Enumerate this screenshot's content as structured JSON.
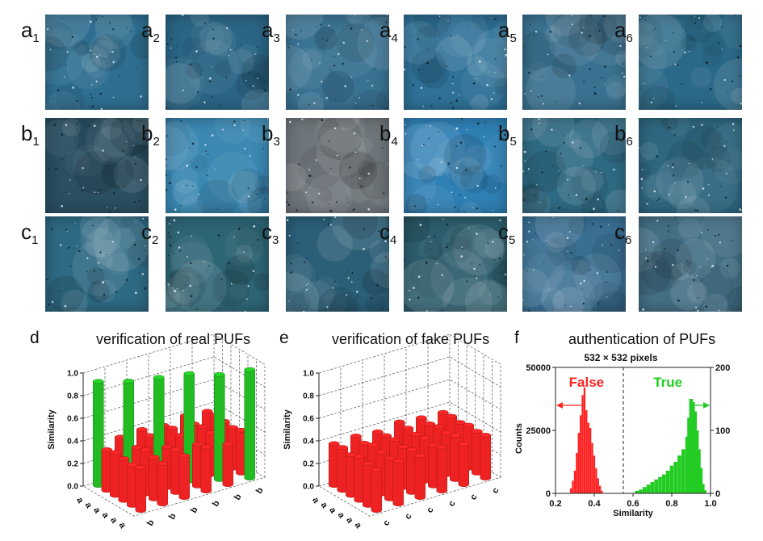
{
  "rows": [
    {
      "letter": "a",
      "subs": [
        "1",
        "2",
        "3",
        "4",
        "5",
        "6"
      ],
      "colors": [
        "#2f6e90",
        "#2b6585",
        "#3a7292",
        "#2f7197",
        "#3a7190",
        "#2b6988"
      ]
    },
    {
      "letter": "b",
      "subs": [
        "1",
        "2",
        "3",
        "4",
        "5",
        "6"
      ],
      "colors": [
        "#2a4f61",
        "#3b88b2",
        "#6f767b",
        "#2f80b5",
        "#2f6a84",
        "#2f6780"
      ]
    },
    {
      "letter": "c",
      "subs": [
        "1",
        "2",
        "3",
        "4",
        "5",
        "6"
      ],
      "colors": [
        "#2e6983",
        "#2e6575",
        "#2b5f78",
        "#2c5d6c",
        "#3a6f92",
        "#436f85"
      ]
    }
  ],
  "panels": {
    "d": {
      "letter": "d",
      "title": "verification of real PUFs"
    },
    "e": {
      "letter": "e",
      "title": "verification of fake PUFs"
    },
    "f": {
      "letter": "f",
      "title": "authentication of PUFs"
    }
  },
  "chart_data": [
    {
      "panel": "d",
      "type": "bar3d",
      "zlabel": "Similarity",
      "zlim": [
        0.0,
        1.0
      ],
      "zticks": [
        "0.0",
        "0.2",
        "0.4",
        "0.6",
        "0.8",
        "1.0"
      ],
      "rows": [
        "a1",
        "a2",
        "a3",
        "a4",
        "a5",
        "a6"
      ],
      "cols": [
        "b1",
        "b2",
        "b3",
        "b4",
        "b5",
        "b6"
      ],
      "row_axis_labels": [
        "a",
        "a",
        "a",
        "a",
        "a",
        "a"
      ],
      "col_axis_labels": [
        "b",
        "b",
        "b",
        "b",
        "b",
        "b"
      ],
      "matching_color": "#22bb22",
      "nonmatching_color": "#ee2222",
      "values": [
        [
          0.92,
          0.37,
          0.38,
          0.36,
          0.39,
          0.37
        ],
        [
          0.36,
          0.91,
          0.37,
          0.38,
          0.36,
          0.38
        ],
        [
          0.38,
          0.37,
          0.93,
          0.36,
          0.38,
          0.37
        ],
        [
          0.37,
          0.39,
          0.36,
          0.95,
          0.37,
          0.36
        ],
        [
          0.36,
          0.37,
          0.38,
          0.37,
          0.93,
          0.38
        ],
        [
          0.38,
          0.36,
          0.37,
          0.39,
          0.36,
          0.96
        ]
      ]
    },
    {
      "panel": "e",
      "type": "bar3d",
      "zlabel": "Similarity",
      "zlim": [
        0.0,
        1.0
      ],
      "zticks": [
        "0.0",
        "0.2",
        "0.4",
        "0.6",
        "0.8",
        "1.0"
      ],
      "rows": [
        "a1",
        "a2",
        "a3",
        "a4",
        "a5",
        "a6"
      ],
      "cols": [
        "c1",
        "c2",
        "c3",
        "c4",
        "c5",
        "c6"
      ],
      "row_axis_labels": [
        "a",
        "a",
        "a",
        "a",
        "a",
        "a"
      ],
      "col_axis_labels": [
        "c",
        "c",
        "c",
        "c",
        "c",
        "c"
      ],
      "nonmatching_color": "#ee2222",
      "values": [
        [
          0.37,
          0.38,
          0.36,
          0.39,
          0.37,
          0.36
        ],
        [
          0.38,
          0.36,
          0.37,
          0.38,
          0.36,
          0.37
        ],
        [
          0.36,
          0.39,
          0.38,
          0.37,
          0.38,
          0.36
        ],
        [
          0.39,
          0.37,
          0.36,
          0.38,
          0.37,
          0.38
        ],
        [
          0.37,
          0.36,
          0.38,
          0.36,
          0.39,
          0.37
        ],
        [
          0.36,
          0.38,
          0.37,
          0.39,
          0.36,
          0.38
        ]
      ]
    },
    {
      "panel": "f",
      "type": "histogram",
      "subtitle": "532 × 532  pixels",
      "xlabel": "Similarity",
      "ylabel": "Counts",
      "xlim": [
        0.2,
        1.0
      ],
      "xticks": [
        "0.2",
        "0.4",
        "0.6",
        "0.8",
        "1.0"
      ],
      "ylim_left": [
        0,
        50000
      ],
      "yticks_left": [
        "0",
        "25000",
        "50000"
      ],
      "ylim_right": [
        0,
        200
      ],
      "yticks_right": [
        "0",
        "100",
        "200"
      ],
      "threshold": 0.55,
      "series": [
        {
          "name": "False",
          "color": "#ff2222",
          "axis": "left",
          "x": [
            0.28,
            0.29,
            0.3,
            0.31,
            0.32,
            0.33,
            0.34,
            0.35,
            0.36,
            0.37,
            0.38,
            0.39,
            0.4,
            0.41,
            0.42,
            0.43,
            0.44
          ],
          "values": [
            2000,
            5000,
            9000,
            16000,
            24000,
            31000,
            39000,
            42000,
            33000,
            28000,
            26000,
            20000,
            15000,
            10000,
            6000,
            3000,
            1000
          ]
        },
        {
          "name": "True",
          "color": "#22cc22",
          "axis": "right",
          "x": [
            0.62,
            0.64,
            0.66,
            0.68,
            0.7,
            0.72,
            0.74,
            0.76,
            0.78,
            0.8,
            0.82,
            0.84,
            0.86,
            0.88,
            0.89,
            0.9,
            0.91,
            0.92,
            0.93,
            0.94,
            0.95,
            0.96,
            0.97
          ],
          "values": [
            4,
            6,
            10,
            14,
            18,
            22,
            26,
            30,
            36,
            44,
            50,
            60,
            70,
            90,
            120,
            150,
            145,
            130,
            100,
            70,
            40,
            15,
            5
          ]
        }
      ]
    }
  ]
}
